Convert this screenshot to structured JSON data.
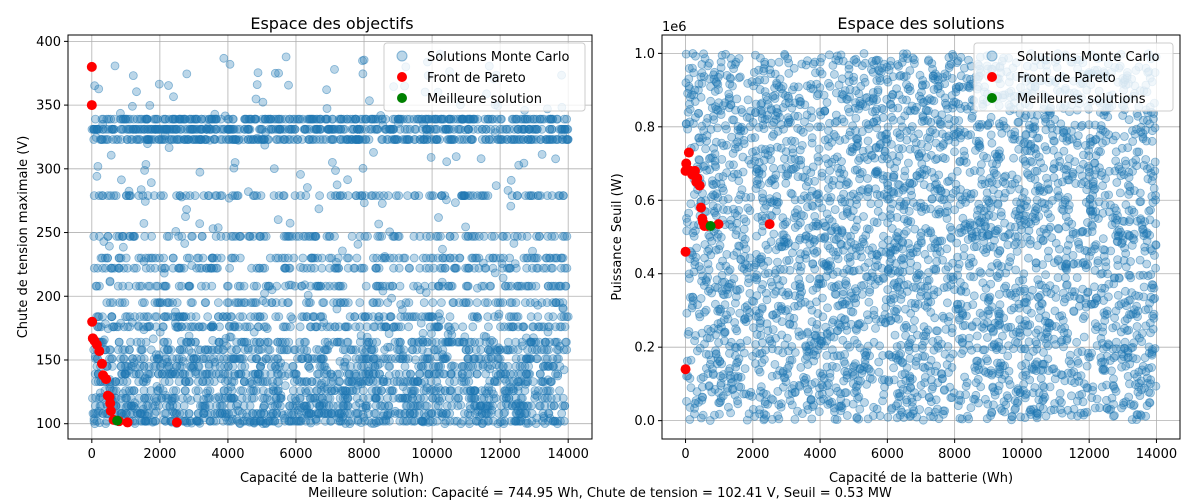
{
  "figure": {
    "caption": "Meilleure solution: Capacité = 744.95 Wh, Chute de tension = 102.41 V, Seuil = 0.53 MW"
  },
  "chart_data": [
    {
      "type": "scatter",
      "title": "Espace des objectifs",
      "xlabel": "Capacité de la batterie (Wh)",
      "ylabel": "Chute de tension maximale (V)",
      "xlim": [
        -700,
        14700
      ],
      "ylim": [
        88,
        405
      ],
      "xticks": [
        "0",
        "2000",
        "4000",
        "6000",
        "8000",
        "10000",
        "12000",
        "14000"
      ],
      "xtick_values": [
        0,
        2000,
        4000,
        6000,
        8000,
        10000,
        12000,
        14000
      ],
      "yticks": [
        "100",
        "150",
        "200",
        "250",
        "300",
        "350",
        "400"
      ],
      "ytick_values": [
        100,
        150,
        200,
        250,
        300,
        350,
        400
      ],
      "grid": true,
      "legend_position": "top-right",
      "series": [
        {
          "name": "Solutions Monte Carlo",
          "color": "#1f77b4",
          "description": "≈5000 random samples, x uniform 0–14000 Wh, y clustered on discrete voltage bands",
          "x_range": [
            0,
            14000
          ],
          "bands": [
            102,
            108,
            114,
            120,
            126,
            133,
            139,
            145,
            151,
            158,
            164,
            176,
            184,
            195,
            208,
            222,
            230,
            247,
            279,
            323,
            331,
            339
          ]
        },
        {
          "name": "Front de Pareto",
          "color": "#ff0000",
          "points": [
            [
              0,
              380
            ],
            [
              0,
              350
            ],
            [
              10,
              180
            ],
            [
              30,
              167
            ],
            [
              80,
              165
            ],
            [
              150,
              162
            ],
            [
              220,
              157
            ],
            [
              300,
              147
            ],
            [
              330,
              138
            ],
            [
              420,
              135
            ],
            [
              470,
              122
            ],
            [
              520,
              121
            ],
            [
              540,
              116
            ],
            [
              560,
              110
            ],
            [
              640,
              103
            ],
            [
              800,
              102
            ],
            [
              1050,
              101
            ],
            [
              2500,
              101
            ]
          ]
        },
        {
          "name": "Meilleure solution",
          "color": "#008000",
          "points": [
            [
              744.95,
              102.41
            ]
          ]
        }
      ]
    },
    {
      "type": "scatter",
      "title": "Espace des solutions",
      "xlabel": "Capacité de la batterie (Wh)",
      "ylabel": "Puissance Seuil (W)",
      "offset_label": "1e6",
      "xlim": [
        -700,
        14700
      ],
      "ylim": [
        -0.05,
        1.05
      ],
      "xticks": [
        "0",
        "2000",
        "4000",
        "6000",
        "8000",
        "10000",
        "12000",
        "14000"
      ],
      "xtick_values": [
        0,
        2000,
        4000,
        6000,
        8000,
        10000,
        12000,
        14000
      ],
      "yticks": [
        "0.0",
        "0.2",
        "0.4",
        "0.6",
        "0.8",
        "1.0"
      ],
      "ytick_values": [
        0.0,
        0.2,
        0.4,
        0.6,
        0.8,
        1.0
      ],
      "grid": true,
      "legend_position": "top-right",
      "series": [
        {
          "name": "Solutions Monte Carlo",
          "color": "#1f77b4",
          "description": "≈5000 random samples, x uniform 0–14000 Wh, y uniform 0–1.0 ×1e6 W",
          "x_range": [
            0,
            14000
          ],
          "y_range": [
            0,
            1.0
          ]
        },
        {
          "name": "Front de Pareto",
          "color": "#ff0000",
          "points": [
            [
              0,
              0.14
            ],
            [
              0,
              0.46
            ],
            [
              0,
              0.68
            ],
            [
              20,
              0.7
            ],
            [
              100,
              0.73
            ],
            [
              150,
              0.68
            ],
            [
              200,
              0.67
            ],
            [
              280,
              0.68
            ],
            [
              320,
              0.65
            ],
            [
              350,
              0.66
            ],
            [
              420,
              0.64
            ],
            [
              460,
              0.58
            ],
            [
              500,
              0.55
            ],
            [
              520,
              0.54
            ],
            [
              560,
              0.53
            ],
            [
              650,
              0.53
            ],
            [
              980,
              0.535
            ],
            [
              2500,
              0.535
            ]
          ]
        },
        {
          "name": "Meilleures solutions",
          "color": "#008000",
          "points": [
            [
              744.95,
              0.53
            ]
          ]
        }
      ]
    }
  ]
}
